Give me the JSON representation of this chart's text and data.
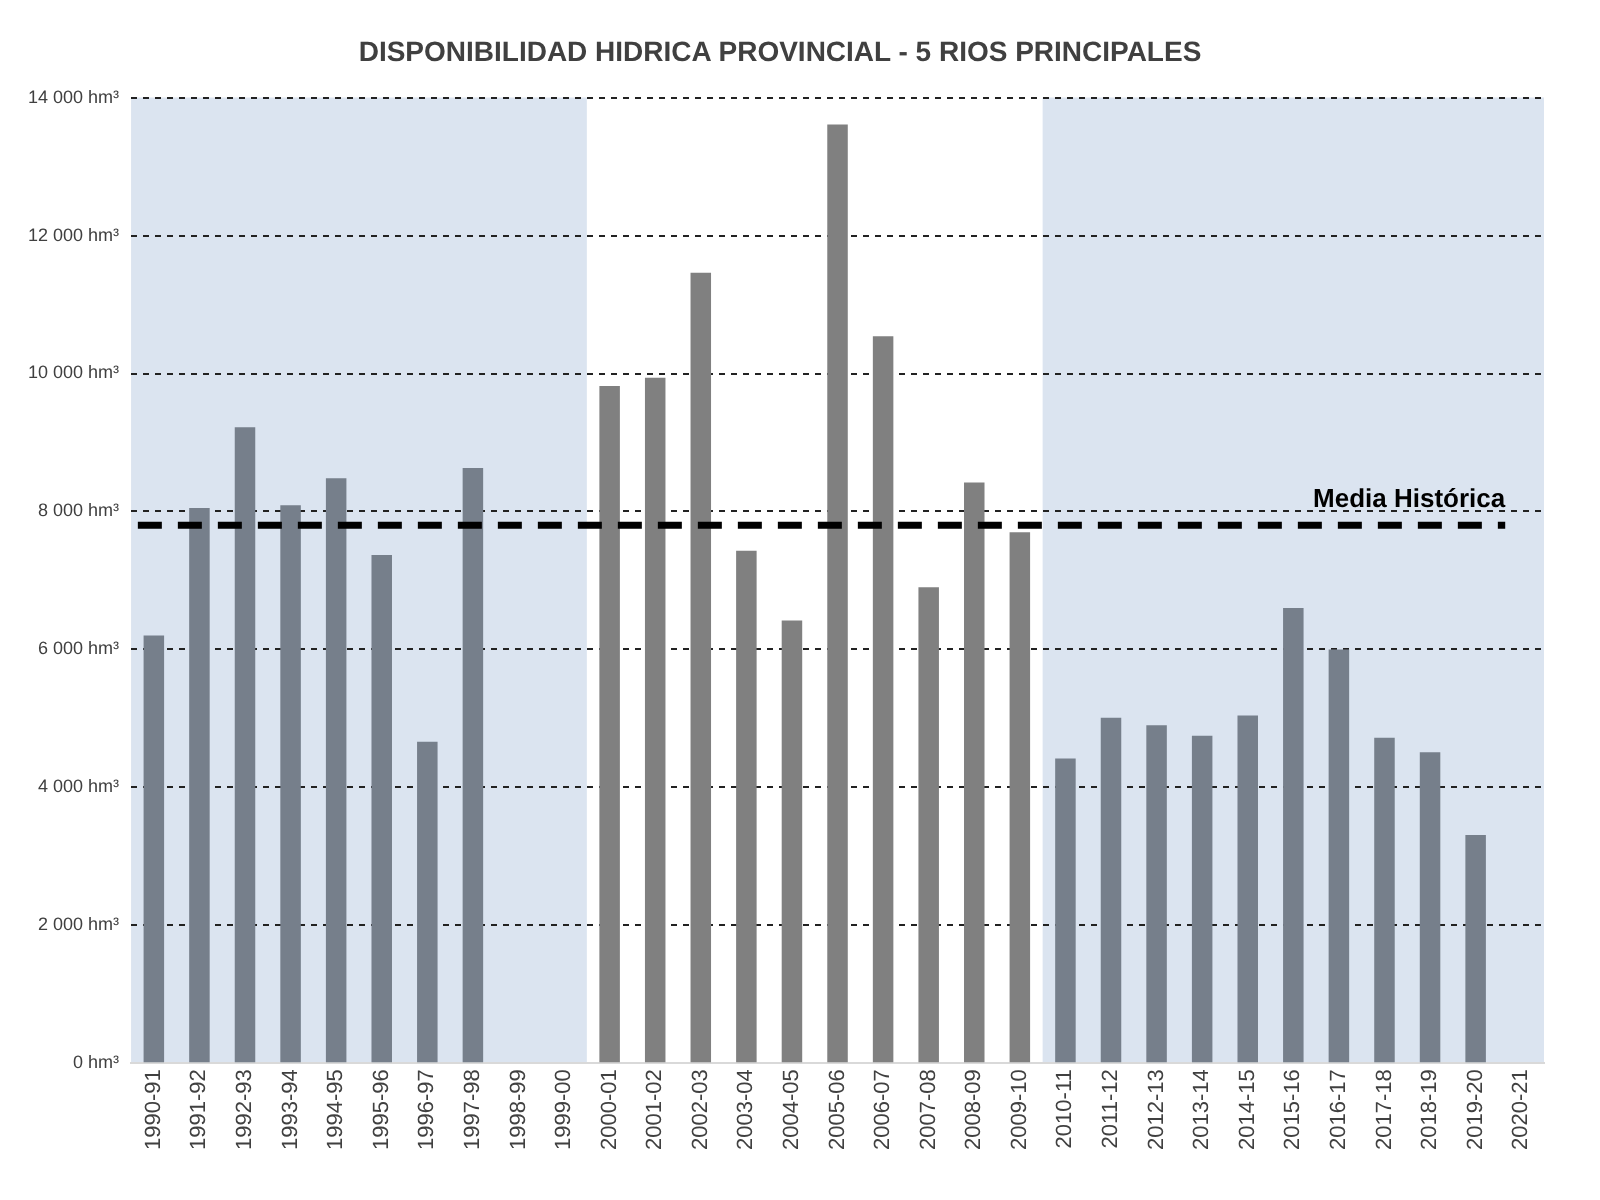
{
  "chart_data": {
    "type": "bar",
    "title": "DISPONIBILIDAD HIDRICA PROVINCIAL - 5 RIOS PRINCIPALES",
    "categories": [
      "1990-91",
      "1991-92",
      "1992-93",
      "1993-94",
      "1994-95",
      "1995-96",
      "1996-97",
      "1997-98",
      "1998-99",
      "1999-00",
      "2000-01",
      "2001-02",
      "2002-03",
      "2003-04",
      "2004-05",
      "2005-06",
      "2006-07",
      "2007-08",
      "2008-09",
      "2009-10",
      "2010-11",
      "2011-12",
      "2012-13",
      "2013-14",
      "2014-15",
      "2015-16",
      "2016-17",
      "2017-18",
      "2018-19",
      "2019-20",
      "2020-21"
    ],
    "values": [
      6200,
      8050,
      9220,
      8090,
      8480,
      7370,
      4660,
      8630,
      null,
      null,
      9820,
      9940,
      11460,
      7430,
      6420,
      13610,
      10540,
      6900,
      8420,
      7700,
      4420,
      5010,
      4900,
      4750,
      5040,
      6600,
      6000,
      4720,
      4510,
      3310,
      null
    ],
    "colors": [
      "#767f8b",
      "#767f8b",
      "#767f8b",
      "#767f8b",
      "#767f8b",
      "#767f8b",
      "#767f8b",
      "#767f8b",
      "#767f8b",
      "#767f8b",
      "#808080",
      "#808080",
      "#808080",
      "#808080",
      "#808080",
      "#808080",
      "#808080",
      "#808080",
      "#808080",
      "#808080",
      "#767f8b",
      "#767f8b",
      "#767f8b",
      "#767f8b",
      "#767f8b",
      "#767f8b",
      "#767f8b",
      "#767f8b",
      "#767f8b",
      "#767f8b",
      "#767f8b"
    ],
    "ylim": [
      0,
      14000
    ],
    "yticks": [
      {
        "value": 0,
        "label": "0 hm³"
      },
      {
        "value": 2000,
        "label": "2 000 hm³"
      },
      {
        "value": 4000,
        "label": "4 000 hm³"
      },
      {
        "value": 6000,
        "label": "6 000 hm³"
      },
      {
        "value": 8000,
        "label": "8 000 hm³"
      },
      {
        "value": 10000,
        "label": "10 000 hm³"
      },
      {
        "value": 12000,
        "label": "12 000 hm³"
      },
      {
        "value": 14000,
        "label": "14 000 hm³"
      }
    ],
    "grid": "y",
    "legend": false,
    "ref_lines": [
      {
        "axis": "y",
        "value": 7800,
        "label": "Media Histórica",
        "color": "#000000",
        "line_style": "dashed"
      }
    ],
    "bands": [
      {
        "axis": "x",
        "from": "1990-91",
        "to": "1999-00",
        "color": "#dbe4f0"
      },
      {
        "axis": "x",
        "from": "2010-11",
        "to": "2020-21",
        "color": "#dbe4f0"
      }
    ]
  }
}
